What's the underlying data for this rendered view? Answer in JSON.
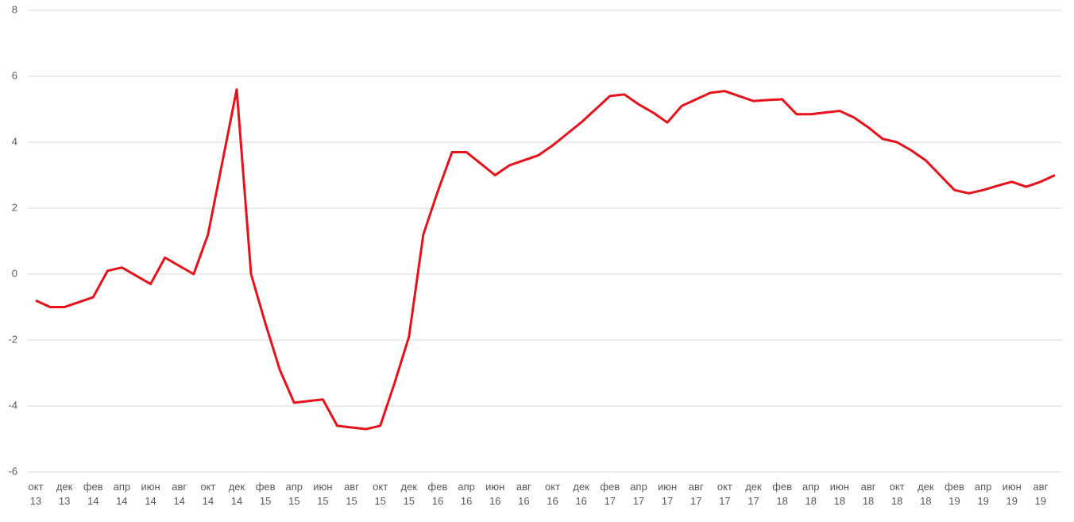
{
  "chart_data": {
    "type": "line",
    "categories": [
      "окт 13",
      null,
      "дек 13",
      null,
      "фев 14",
      null,
      "апр 14",
      null,
      "июн 14",
      null,
      "авг 14",
      null,
      "окт 14",
      null,
      "дек 14",
      null,
      "фев 15",
      null,
      "апр 15",
      null,
      "июн 15",
      null,
      "авг 15",
      null,
      "окт 15",
      null,
      "дек 15",
      null,
      "фев 16",
      null,
      "апр 16",
      null,
      "июн 16",
      null,
      "авг 16",
      null,
      "окт 16",
      null,
      "дек 16",
      null,
      "фев 17",
      null,
      "апр 17",
      null,
      "июн 17",
      null,
      "авг 17",
      null,
      "окт 17",
      null,
      "дек 17",
      null,
      "фев 18",
      null,
      "апр 18",
      null,
      "июн 18",
      null,
      "авг 18",
      null,
      "окт 18",
      null,
      "дек 18",
      null,
      "фев 19",
      null,
      "апр 19",
      null,
      "июн 19",
      null,
      "авг 19",
      null
    ],
    "values": [
      -0.8,
      -1.0,
      -1.0,
      -0.85,
      -0.7,
      0.1,
      0.2,
      -0.05,
      -0.3,
      0.5,
      0.25,
      0.0,
      1.2,
      3.4,
      5.6,
      0.0,
      -1.5,
      -2.9,
      -3.9,
      -3.85,
      -3.8,
      -4.6,
      -4.65,
      -4.7,
      -4.6,
      -3.3,
      -1.9,
      1.2,
      2.5,
      3.7,
      3.7,
      3.35,
      3.0,
      3.3,
      3.45,
      3.6,
      3.9,
      4.25,
      4.6,
      5.0,
      5.4,
      5.45,
      5.15,
      4.9,
      4.6,
      5.1,
      5.3,
      5.5,
      5.55,
      5.4,
      5.25,
      5.28,
      5.3,
      4.85,
      4.85,
      4.9,
      4.95,
      4.75,
      4.45,
      4.1,
      4.0,
      3.75,
      3.45,
      3.0,
      2.55,
      2.45,
      2.55,
      2.68,
      2.8,
      2.65,
      2.8,
      3.0
    ],
    "color": "#e8111a",
    "ylim": [
      -6,
      8
    ],
    "yticks": [
      -6,
      -4,
      -2,
      0,
      2,
      4,
      6,
      8
    ],
    "grid": true
  }
}
